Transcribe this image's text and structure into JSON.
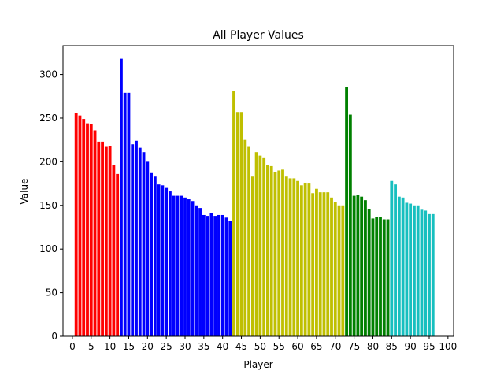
{
  "chart_data": {
    "type": "bar",
    "title": "All Player Values",
    "xlabel": "Player",
    "ylabel": "Value",
    "xlim": [
      -2.5,
      101.5
    ],
    "ylim": [
      0,
      333
    ],
    "xticks": [
      0,
      5,
      10,
      15,
      20,
      25,
      30,
      35,
      40,
      45,
      50,
      55,
      60,
      65,
      70,
      75,
      80,
      85,
      90,
      95,
      100
    ],
    "yticks": [
      0,
      50,
      100,
      150,
      200,
      250,
      300
    ],
    "grid": false,
    "legend": "none",
    "groups": [
      {
        "color": "#ff0000",
        "x": [
          1,
          2,
          3,
          4,
          5,
          6,
          7,
          8,
          9,
          10,
          11,
          12
        ],
        "values": [
          256,
          253,
          249,
          244,
          243,
          236,
          223,
          223,
          217,
          218,
          196,
          186
        ]
      },
      {
        "color": "#0000ff",
        "x": [
          13,
          14,
          15,
          16,
          17,
          18,
          19,
          20,
          21,
          22,
          23,
          24,
          25,
          26,
          27,
          28,
          29,
          30,
          31,
          32,
          33,
          34,
          35,
          36,
          37,
          38,
          39,
          40,
          41,
          42
        ],
        "values": [
          318,
          279,
          279,
          220,
          224,
          216,
          211,
          200,
          187,
          183,
          174,
          173,
          170,
          166,
          161,
          161,
          161,
          159,
          157,
          155,
          150,
          147,
          139,
          138,
          141,
          138,
          139,
          139,
          136,
          132
        ]
      },
      {
        "color": "#bfbf00",
        "x": [
          43,
          44,
          45,
          46,
          47,
          48,
          49,
          50,
          51,
          52,
          53,
          54,
          55,
          56,
          57,
          58,
          59,
          60,
          61,
          62,
          63,
          64,
          65,
          66,
          67,
          68,
          69,
          70,
          71,
          72
        ],
        "values": [
          281,
          257,
          257,
          225,
          217,
          183,
          211,
          207,
          205,
          196,
          195,
          188,
          190,
          191,
          183,
          181,
          181,
          178,
          173,
          176,
          175,
          164,
          169,
          165,
          165,
          165,
          159,
          154,
          150,
          150
        ]
      },
      {
        "color": "#008000",
        "x": [
          73,
          74,
          75,
          76,
          77,
          78,
          79,
          80,
          81,
          82,
          83,
          84
        ],
        "values": [
          286,
          254,
          161,
          162,
          160,
          156,
          146,
          135,
          137,
          137,
          134,
          134
        ]
      },
      {
        "color": "#17bfbf",
        "x": [
          85,
          86,
          87,
          88,
          89,
          90,
          91,
          92,
          93,
          94,
          95,
          96
        ],
        "values": [
          178,
          174,
          160,
          159,
          153,
          152,
          150,
          150,
          145,
          144,
          140,
          140
        ]
      }
    ]
  }
}
